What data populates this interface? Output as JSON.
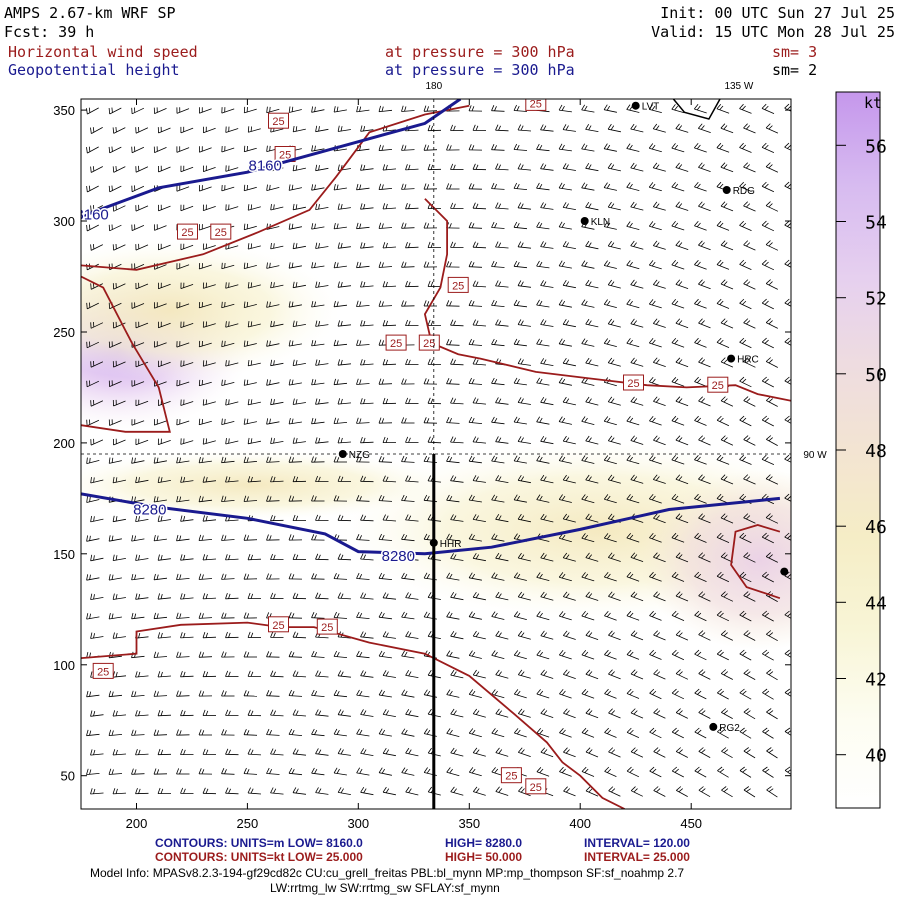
{
  "header": {
    "model": "AMPS 2.67-km WRF SP",
    "fcst": "Fcst:   39 h",
    "init": "Init: 00 UTC Sun 27 Jul 25",
    "valid": "Valid: 15 UTC Mon 28 Jul 25",
    "field1": "Horizontal wind speed",
    "field2": "Geopotential height",
    "level1": "at pressure =  300 hPa",
    "level2": "at pressure =  300 hPa",
    "sm1": "sm= 3",
    "sm2": "sm= 2"
  },
  "colors": {
    "wind_contour": "#9b1c1c",
    "height_contour": "#1a1a8f",
    "c40": "#fbfbe9",
    "c42": "#f7f5d3",
    "c44": "#f5efc2",
    "c46": "#f3e6cc",
    "c48": "#efdcdc",
    "c50": "#e9d0ee",
    "c52": "#dcc3f0",
    "c54": "#d2b3f0",
    "c56": "#c79cee"
  },
  "chart_data": {
    "type": "heatmap",
    "description_fields": [
      "wind speed shading (kt)",
      "geopotential height contours (m)",
      "wind barbs"
    ],
    "xlim": [
      175,
      495
    ],
    "ylim": [
      35,
      355
    ],
    "xticks": [
      200,
      250,
      300,
      350,
      400,
      450
    ],
    "yticks": [
      50,
      100,
      150,
      200,
      250,
      300,
      350
    ],
    "colorbar": {
      "unit": "kt",
      "ticks": [
        40,
        42,
        44,
        46,
        48,
        50,
        52,
        54,
        56
      ]
    },
    "meridian_labels": [
      {
        "text": "180",
        "x": 334,
        "y": 355
      },
      {
        "text": "135 W",
        "x": 467,
        "y": 355
      },
      {
        "text": "90 W",
        "x": 492,
        "y": 195
      }
    ],
    "stations": [
      {
        "name": "LVT",
        "x": 425,
        "y": 352
      },
      {
        "name": "RDG",
        "x": 466,
        "y": 314
      },
      {
        "name": "KLN",
        "x": 402,
        "y": 300
      },
      {
        "name": "HRC",
        "x": 468,
        "y": 238
      },
      {
        "name": "NZG",
        "x": 293,
        "y": 195
      },
      {
        "name": "HHR",
        "x": 334,
        "y": 155
      },
      {
        "name": "",
        "x": 492,
        "y": 142
      },
      {
        "name": "RG2",
        "x": 460,
        "y": 72
      }
    ],
    "height_contours": [
      {
        "label": "8160",
        "points": [
          [
            175,
            302
          ],
          [
            210,
            315
          ],
          [
            250,
            322
          ],
          [
            290,
            333
          ],
          [
            330,
            344
          ],
          [
            346,
            355
          ]
        ]
      },
      {
        "label": "8280",
        "points": [
          [
            175,
            177
          ],
          [
            210,
            171
          ],
          [
            250,
            166
          ],
          [
            285,
            159
          ],
          [
            300,
            151
          ],
          [
            330,
            150
          ],
          [
            360,
            153
          ],
          [
            400,
            161
          ],
          [
            440,
            170
          ],
          [
            490,
            175
          ]
        ]
      }
    ],
    "wind_contour_value": 25,
    "wind_contours": [
      {
        "points": [
          [
            175,
            280
          ],
          [
            200,
            278
          ],
          [
            230,
            285
          ],
          [
            255,
            295
          ],
          [
            278,
            305
          ],
          [
            290,
            320
          ],
          [
            305,
            340
          ],
          [
            330,
            348
          ],
          [
            350,
            352
          ]
        ]
      },
      {
        "points": [
          [
            175,
            208
          ],
          [
            195,
            205
          ],
          [
            215,
            205
          ],
          [
            210,
            225
          ],
          [
            198,
            245
          ],
          [
            185,
            270
          ],
          [
            175,
            275
          ]
        ]
      },
      {
        "points": [
          [
            330,
            310
          ],
          [
            340,
            300
          ],
          [
            340,
            285
          ],
          [
            337,
            270
          ],
          [
            330,
            258
          ],
          [
            333,
            245
          ],
          [
            345,
            240
          ],
          [
            355,
            238
          ],
          [
            380,
            232
          ],
          [
            405,
            229
          ],
          [
            430,
            226
          ],
          [
            448,
            225
          ],
          [
            470,
            226
          ],
          [
            480,
            222
          ],
          [
            495,
            219
          ]
        ]
      },
      {
        "points": [
          [
            490,
            160
          ],
          [
            480,
            163
          ],
          [
            470,
            160
          ],
          [
            468,
            145
          ],
          [
            475,
            135
          ],
          [
            490,
            130
          ]
        ]
      },
      {
        "points": [
          [
            175,
            103
          ],
          [
            200,
            105
          ],
          [
            200,
            115
          ],
          [
            220,
            118
          ],
          [
            250,
            119
          ],
          [
            265,
            117
          ],
          [
            280,
            117
          ],
          [
            305,
            110
          ],
          [
            330,
            105
          ],
          [
            350,
            95
          ],
          [
            370,
            78
          ],
          [
            385,
            65
          ],
          [
            392,
            56
          ],
          [
            400,
            50
          ],
          [
            410,
            40
          ],
          [
            420,
            35
          ]
        ]
      }
    ],
    "wind_contour_labels": [
      {
        "text": "25",
        "x": 264,
        "y": 345
      },
      {
        "text": "25",
        "x": 267,
        "y": 330
      },
      {
        "text": "25",
        "x": 223,
        "y": 295
      },
      {
        "text": "25",
        "x": 238,
        "y": 295
      },
      {
        "text": "25",
        "x": 380,
        "y": 353
      },
      {
        "text": "25",
        "x": 345,
        "y": 271
      },
      {
        "text": "25",
        "x": 317,
        "y": 245
      },
      {
        "text": "25",
        "x": 332,
        "y": 245
      },
      {
        "text": "25",
        "x": 424,
        "y": 227
      },
      {
        "text": "25",
        "x": 462,
        "y": 226
      },
      {
        "text": "25",
        "x": 264,
        "y": 118
      },
      {
        "text": "25",
        "x": 286,
        "y": 117
      },
      {
        "text": "25",
        "x": 185,
        "y": 97
      },
      {
        "text": "25",
        "x": 369,
        "y": 50
      },
      {
        "text": "25",
        "x": 380,
        "y": 45
      }
    ]
  },
  "footer": {
    "line1_a": "CONTOURS:  UNITS=m  LOW=   8160.0",
    "line1_b": "HIGH=  8280.0",
    "line1_c": "INTERVAL=    120.00",
    "line2_a": "CONTOURS:  UNITS=kt  LOW=   25.000",
    "line2_b": "HIGH=  50.000",
    "line2_c": "INTERVAL=    25.000",
    "model_info": "Model Info: MPASv8.2.3-194-gf29cd82c CU:cu_grell_freitas PBL:bl_mynn MP:mp_thompson SF:sf_noahmp 2.7",
    "model_info2": "LW:rrtmg_lw SW:rrtmg_sw SFLAY:sf_mynn"
  }
}
